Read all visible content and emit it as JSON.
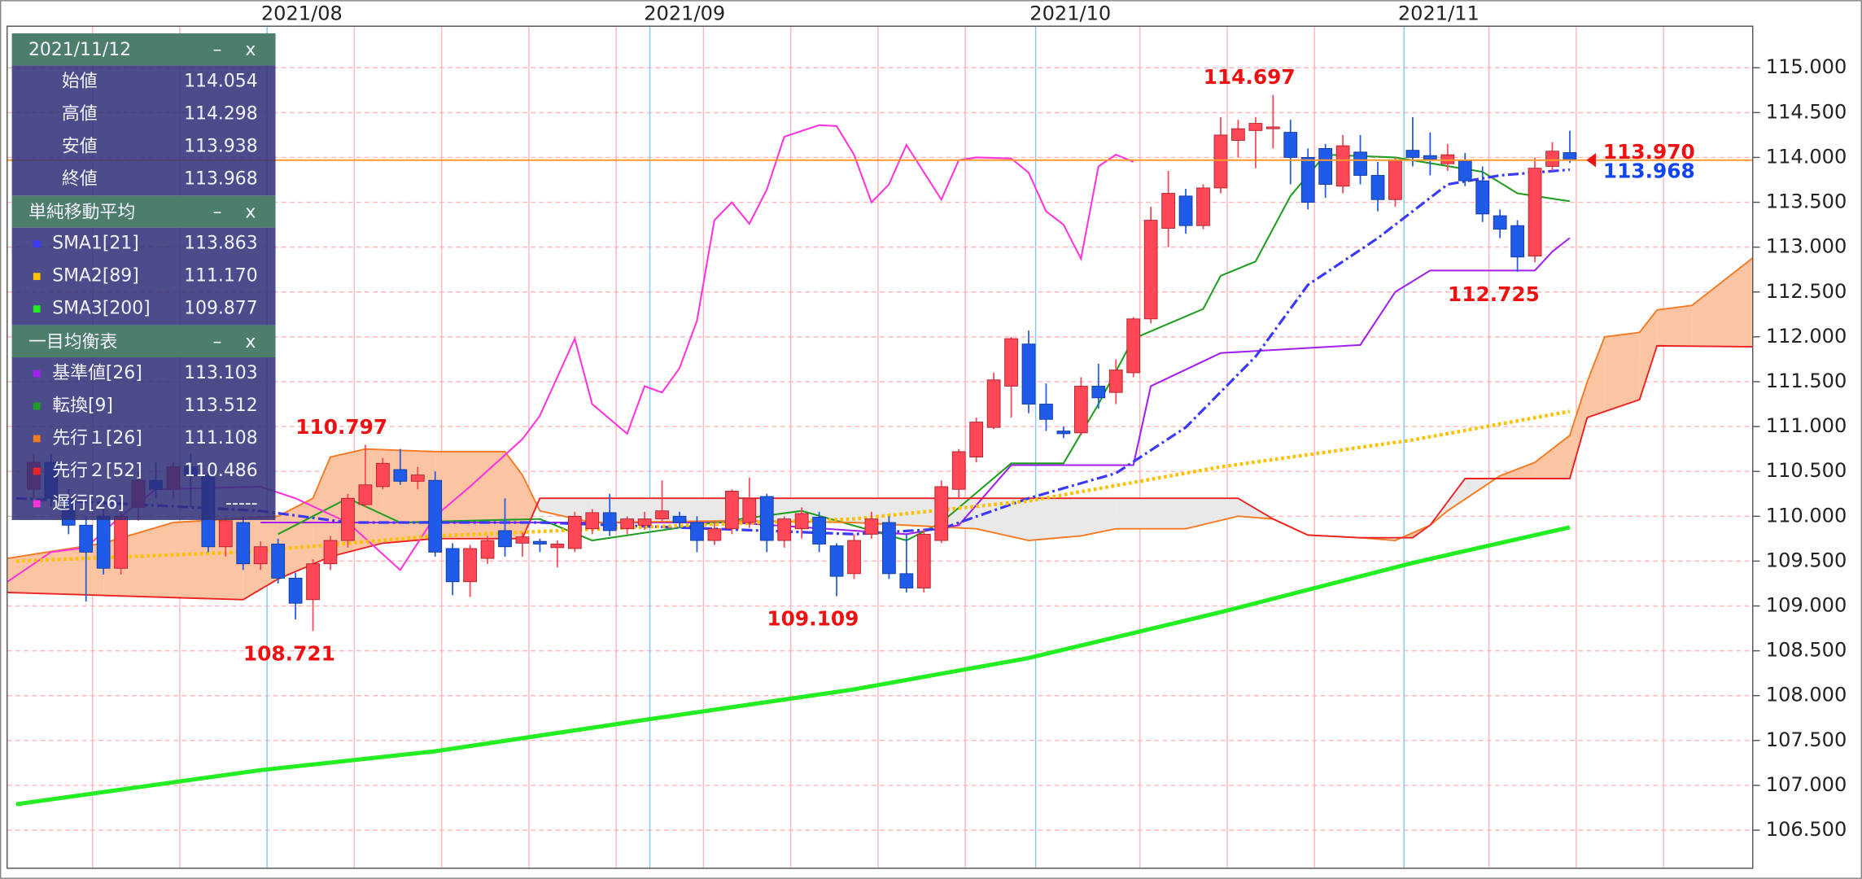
{
  "chart_data": {
    "type": "candlestick",
    "x": [
      0,
      1,
      2,
      3,
      4,
      5,
      6,
      7,
      8,
      9,
      10,
      11,
      12,
      13,
      14,
      15,
      16,
      17,
      18,
      19,
      20,
      21,
      22,
      23,
      24,
      25,
      26,
      27,
      28,
      29,
      30,
      31,
      32,
      33,
      34,
      35,
      36,
      37,
      38,
      39,
      40,
      41,
      42,
      43,
      44,
      45,
      46,
      47,
      48,
      49,
      50,
      51,
      52,
      53,
      54,
      55,
      56,
      57,
      58,
      59,
      60,
      61,
      62,
      63,
      64,
      65,
      66,
      67,
      68,
      69,
      70,
      71,
      72,
      73,
      74,
      75,
      76,
      77,
      78,
      79,
      80,
      81,
      82,
      83,
      84,
      85,
      86,
      87,
      88
    ],
    "open": [
      110.3,
      110.6,
      110.2,
      109.9,
      110.0,
      109.42,
      110.1,
      110.4,
      110.3,
      110.55,
      110.45,
      109.66,
      109.93,
      109.47,
      109.69,
      109.31,
      109.07,
      109.47,
      109.73,
      110.13,
      110.33,
      110.52,
      110.39,
      110.4,
      109.64,
      109.27,
      109.53,
      109.84,
      109.7,
      109.72,
      109.65,
      109.64,
      109.86,
      110.04,
      109.86,
      109.9,
      109.97,
      110.0,
      109.93,
      109.73,
      109.86,
      109.93,
      110.22,
      109.73,
      109.86,
      109.99,
      109.67,
      109.36,
      109.8,
      109.93,
      109.36,
      109.2,
      109.73,
      110.3,
      110.66,
      110.99,
      111.45,
      111.92,
      111.25,
      110.95,
      110.93,
      111.45,
      111.38,
      111.6,
      112.2,
      113.21,
      113.57,
      113.24,
      113.66,
      114.19,
      114.3,
      114.32,
      114.28,
      114.0,
      114.1,
      113.68,
      114.06,
      113.8,
      113.53,
      114.08,
      114.02,
      113.93,
      113.96,
      113.74,
      113.35,
      113.24,
      112.9,
      113.9,
      114.054
    ],
    "high": [
      110.7,
      110.7,
      110.3,
      110.0,
      110.1,
      110.1,
      110.5,
      110.6,
      110.6,
      110.7,
      110.5,
      110.0,
      110.0,
      109.72,
      109.75,
      109.37,
      109.52,
      109.78,
      110.25,
      110.797,
      110.65,
      110.75,
      110.55,
      110.5,
      109.7,
      109.68,
      109.78,
      110.2,
      109.82,
      109.75,
      109.73,
      110.05,
      110.08,
      110.25,
      110.0,
      110.05,
      110.4,
      110.05,
      110.0,
      109.95,
      110.3,
      110.43,
      110.25,
      110.0,
      110.1,
      110.05,
      109.7,
      109.8,
      110.05,
      110.0,
      109.8,
      109.85,
      110.4,
      110.75,
      111.1,
      111.6,
      112.0,
      112.07,
      111.48,
      111.0,
      111.55,
      111.7,
      111.75,
      112.22,
      113.45,
      113.85,
      113.65,
      113.7,
      114.45,
      114.42,
      114.45,
      114.697,
      114.42,
      114.1,
      114.15,
      114.25,
      114.25,
      113.95,
      114.0,
      114.45,
      114.28,
      114.15,
      114.05,
      113.9,
      113.42,
      113.3,
      114.0,
      114.17,
      114.298
    ],
    "low": [
      110.2,
      110.1,
      109.8,
      109.05,
      109.35,
      109.35,
      109.95,
      110.2,
      110.2,
      110.1,
      109.6,
      109.55,
      109.4,
      109.4,
      109.25,
      108.85,
      108.721,
      109.4,
      109.65,
      110.1,
      110.3,
      110.35,
      110.3,
      109.55,
      109.12,
      109.1,
      109.47,
      109.55,
      109.55,
      109.6,
      109.43,
      109.6,
      109.8,
      109.78,
      109.8,
      109.85,
      109.93,
      109.88,
      109.6,
      109.68,
      109.8,
      109.87,
      109.6,
      109.65,
      109.75,
      109.6,
      109.109,
      109.3,
      109.75,
      109.3,
      109.15,
      109.15,
      109.7,
      110.2,
      110.6,
      110.97,
      111.1,
      111.15,
      110.95,
      110.87,
      110.9,
      111.2,
      111.25,
      111.55,
      112.15,
      113.0,
      113.15,
      113.2,
      113.6,
      114.0,
      113.88,
      114.1,
      113.7,
      113.42,
      113.55,
      113.6,
      113.7,
      113.4,
      113.45,
      113.9,
      113.8,
      113.85,
      113.68,
      113.28,
      113.1,
      112.725,
      112.83,
      113.85,
      113.938
    ],
    "close": [
      110.6,
      110.2,
      109.9,
      109.6,
      109.42,
      110.0,
      110.4,
      110.3,
      110.55,
      110.45,
      109.66,
      109.95,
      109.47,
      109.66,
      109.31,
      109.03,
      109.47,
      109.73,
      110.2,
      110.35,
      110.59,
      110.39,
      110.46,
      109.6,
      109.27,
      109.64,
      109.73,
      109.66,
      109.77,
      109.69,
      109.69,
      110.0,
      110.04,
      109.84,
      109.97,
      109.97,
      110.06,
      109.93,
      109.73,
      109.86,
      110.28,
      110.2,
      109.73,
      109.97,
      110.03,
      109.69,
      109.33,
      109.73,
      109.97,
      109.36,
      109.2,
      109.8,
      110.33,
      110.72,
      111.05,
      111.52,
      111.98,
      111.25,
      111.08,
      110.92,
      111.45,
      111.32,
      111.63,
      112.2,
      113.3,
      113.6,
      113.24,
      113.66,
      114.25,
      114.32,
      114.38,
      114.34,
      114.0,
      113.5,
      113.7,
      114.13,
      113.8,
      113.53,
      113.97,
      114.0,
      113.98,
      114.03,
      113.74,
      113.37,
      113.2,
      112.89,
      113.88,
      114.07,
      113.968
    ],
    "up_color": "#ff4755",
    "down_color": "#1f5ae8",
    "xlim": [
      -1.52,
      98.48
    ],
    "xticks": [
      {
        "value": 13.37,
        "label": "2021/08"
      },
      {
        "value": 35.3,
        "label": "2021/09"
      },
      {
        "value": 57.4,
        "label": "2021/10"
      },
      {
        "value": 78.5,
        "label": "2021/11"
      }
    ],
    "xminor": [
      3.37,
      8.37,
      18.37,
      23.37,
      28.37,
      33.37,
      38.37,
      43.37,
      48.37,
      53.37,
      63.37,
      68.37,
      73.37,
      83.37,
      88.37,
      93.37
    ],
    "ylim": [
      106.076,
      115.463
    ],
    "yticks": [
      {
        "value": 106.5,
        "label": "106.500"
      },
      {
        "value": 107,
        "label": "107.000"
      },
      {
        "value": 107.5,
        "label": "107.500"
      },
      {
        "value": 108,
        "label": "108.000"
      },
      {
        "value": 108.5,
        "label": "108.500"
      },
      {
        "value": 109,
        "label": "109.000"
      },
      {
        "value": 109.5,
        "label": "109.500"
      },
      {
        "value": 110,
        "label": "110.000"
      },
      {
        "value": 110.5,
        "label": "110.500"
      },
      {
        "value": 111,
        "label": "111.000"
      },
      {
        "value": 111.5,
        "label": "111.500"
      },
      {
        "value": 112,
        "label": "112.000"
      },
      {
        "value": 112.5,
        "label": "112.500"
      },
      {
        "value": 113,
        "label": "113.000"
      },
      {
        "value": 113.5,
        "label": "113.500"
      },
      {
        "value": 114,
        "label": "114.000"
      },
      {
        "value": 114.5,
        "label": "114.500"
      },
      {
        "value": 115,
        "label": "115.000"
      }
    ],
    "grid": true,
    "grid_color": "#ffb6bc",
    "month_line_color": "#86c8f2",
    "sma_title": "単純移動平均",
    "sma": [
      {
        "name": "SMA1[21]",
        "color": "#3a3aff",
        "style": "dashdot",
        "panel_value": "113.863",
        "x": [
          -1,
          13,
          18,
          29,
          39,
          47,
          52,
          57,
          62,
          66,
          70,
          73,
          77,
          81,
          84,
          88
        ],
        "values": [
          110.2,
          110.06,
          109.93,
          109.93,
          109.86,
          109.8,
          109.86,
          110.2,
          110.48,
          110.99,
          111.78,
          112.58,
          113.1,
          113.7,
          113.8,
          113.863
        ]
      },
      {
        "name": "SMA2[89]",
        "color": "#ffc000",
        "style": "dotted",
        "panel_value": "111.170",
        "x": [
          -1,
          12,
          23,
          35,
          47,
          57,
          68,
          79,
          88
        ],
        "values": [
          109.5,
          109.6,
          109.78,
          109.88,
          109.97,
          110.17,
          110.55,
          110.85,
          111.17
        ]
      },
      {
        "name": "SMA3[200]",
        "color": "#22ee22",
        "style": "bold",
        "panel_value": "109.877",
        "x": [
          -1,
          13,
          23,
          35,
          47,
          57,
          68,
          79,
          88
        ],
        "values": [
          106.79,
          107.17,
          107.38,
          107.73,
          108.07,
          108.42,
          108.93,
          109.48,
          109.877
        ]
      }
    ],
    "ichimoku_title": "一目均衡表",
    "ichimoku": [
      {
        "name": "基準値[26]",
        "color": "#a21ff0",
        "style": "solid",
        "panel_value": "113.103",
        "x": [
          13,
          40,
          50,
          53,
          56,
          63,
          64,
          68,
          76,
          78,
          80,
          86,
          87,
          88
        ],
        "values": [
          109.93,
          109.93,
          109.8,
          109.9,
          110.57,
          110.57,
          111.45,
          111.82,
          111.91,
          112.5,
          112.74,
          112.74,
          112.95,
          113.103
        ]
      },
      {
        "name": "転換[9]",
        "color": "#1f9e1f",
        "style": "solid",
        "panel_value": "113.512",
        "x": [
          14,
          18,
          21,
          29,
          32,
          39,
          44,
          50,
          52,
          56,
          59,
          61,
          63,
          67,
          68,
          70,
          72,
          74,
          78,
          83,
          85,
          88
        ],
        "values": [
          109.8,
          110.2,
          109.93,
          109.97,
          109.73,
          109.93,
          110.06,
          109.73,
          109.93,
          110.59,
          110.59,
          111.25,
          111.98,
          112.31,
          112.68,
          112.84,
          113.57,
          114.03,
          114.0,
          113.84,
          113.6,
          113.512
        ]
      },
      {
        "name": "先行１[26]",
        "color": "#f57a22",
        "style": "span",
        "panel_value": "111.108",
        "x": [
          -1.5,
          4,
          8,
          14,
          16,
          17,
          19,
          23,
          27,
          28,
          29,
          32,
          40,
          47,
          54,
          57,
          60,
          62,
          66,
          69,
          71,
          73,
          76,
          78,
          80,
          81,
          84,
          86,
          88,
          89,
          90,
          92,
          93,
          95,
          98.48
        ],
        "values": [
          109.53,
          109.7,
          109.93,
          110.0,
          110.2,
          110.66,
          110.75,
          110.72,
          110.72,
          110.46,
          110.06,
          109.93,
          109.95,
          109.93,
          109.86,
          109.73,
          109.78,
          109.86,
          109.86,
          110.0,
          109.97,
          109.79,
          109.76,
          109.73,
          109.9,
          110.06,
          110.45,
          110.6,
          110.9,
          111.5,
          112.0,
          112.05,
          112.3,
          112.35,
          112.88
        ]
      },
      {
        "name": "先行２[52]",
        "color": "#ec2222",
        "style": "span",
        "panel_value": "110.486",
        "x": [
          -1.5,
          12,
          14,
          17,
          20,
          23,
          28,
          29,
          69,
          71,
          73,
          76,
          79,
          80,
          82,
          88,
          89,
          92,
          93,
          98.48
        ],
        "values": [
          109.15,
          109.07,
          109.3,
          109.55,
          109.7,
          109.75,
          109.75,
          110.2,
          110.2,
          109.97,
          109.79,
          109.76,
          109.76,
          109.9,
          110.42,
          110.42,
          111.1,
          111.3,
          111.9,
          111.89
        ]
      },
      {
        "name": "遅行[26]",
        "color": "#ff33dd",
        "style": "solid",
        "panel_value": "-----",
        "x": [
          -1.5,
          1,
          3,
          5,
          7,
          13,
          15,
          18,
          21,
          23,
          25,
          28,
          29,
          31,
          32,
          34,
          35,
          36,
          37,
          38,
          39,
          40,
          41,
          42,
          43,
          45,
          46,
          47,
          48,
          49,
          50,
          52,
          53,
          54,
          56,
          57,
          58,
          59,
          60,
          61,
          62,
          63
        ],
        "values": [
          109.27,
          109.6,
          109.65,
          110.0,
          110.3,
          110.33,
          110.2,
          109.93,
          109.4,
          110.0,
          110.33,
          110.86,
          111.12,
          111.98,
          111.25,
          110.92,
          111.45,
          111.38,
          111.65,
          112.18,
          113.3,
          113.5,
          113.26,
          113.64,
          114.23,
          114.36,
          114.35,
          114.03,
          113.5,
          113.7,
          114.14,
          113.53,
          113.97,
          114.0,
          113.99,
          113.83,
          113.4,
          113.25,
          112.87,
          113.9,
          114.03,
          113.95
        ]
      }
    ],
    "cloud_colors": {
      "bull": "#fbc4a3",
      "bear": "#e9e9e9"
    },
    "annotations": [
      {
        "x": 71,
        "value": 114.697,
        "label": "114.697"
      },
      {
        "x": 85,
        "value": 112.725,
        "label": "112.725"
      },
      {
        "x": 19,
        "value": 110.797,
        "label": "110.797"
      },
      {
        "x": 46,
        "value": 109.109,
        "label": "109.109"
      },
      {
        "x": 16,
        "value": 108.721,
        "label": "108.721"
      }
    ],
    "annotation_color": "#ee1111",
    "current_price": {
      "value": 113.97,
      "label": "113.970",
      "color": "#ee1111",
      "line_color": "#ff9a2a"
    },
    "last_close": {
      "value": 113.968,
      "label": "113.968",
      "color": "#1144ee"
    },
    "ohlc_panel": {
      "title": "2021/11/12",
      "rows": [
        {
          "label": "始値",
          "value": "114.054"
        },
        {
          "label": "高値",
          "value": "114.298"
        },
        {
          "label": "安値",
          "value": "113.938"
        },
        {
          "label": "終値",
          "value": "113.968"
        }
      ]
    },
    "panel_buttons": [
      "–",
      "x"
    ]
  }
}
